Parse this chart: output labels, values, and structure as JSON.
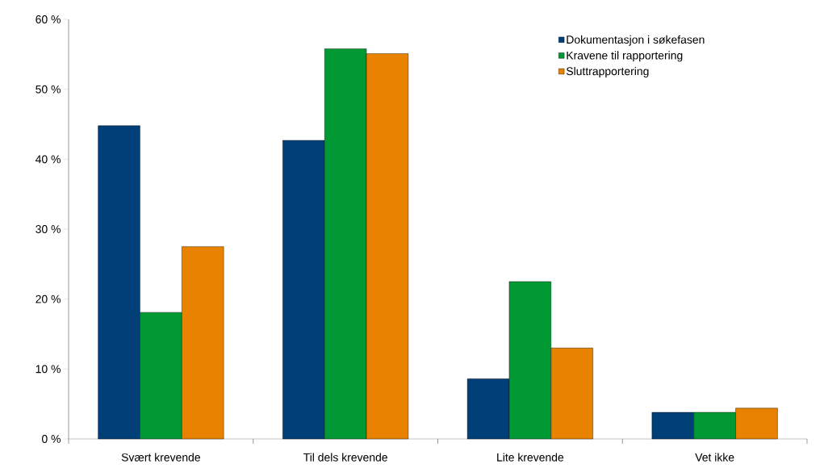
{
  "chart_data": {
    "type": "bar",
    "categories": [
      "Svært krevende",
      "Til dels krevende",
      "Lite krevende",
      "Vet ikke"
    ],
    "series": [
      {
        "name": "Dokumentasjon i søkefasen",
        "color": "#003f77",
        "values": [
          44.8,
          42.7,
          8.6,
          3.8
        ]
      },
      {
        "name": "Kravene til rapportering",
        "color": "#009933",
        "values": [
          18.1,
          55.8,
          22.5,
          3.8
        ]
      },
      {
        "name": "Sluttrapportering",
        "color": "#e88200",
        "values": [
          27.5,
          55.1,
          13.0,
          4.4
        ]
      }
    ],
    "ylim": [
      0,
      60
    ],
    "yticks": [
      {
        "value": 0,
        "label": "0 %"
      },
      {
        "value": 10,
        "label": "10 %"
      },
      {
        "value": 20,
        "label": "20 %"
      },
      {
        "value": 30,
        "label": "30 %"
      },
      {
        "value": 40,
        "label": "40 %"
      },
      {
        "value": 50,
        "label": "50 %"
      },
      {
        "value": 60,
        "label": "60 %"
      }
    ],
    "grid": false,
    "legend": "top right"
  }
}
